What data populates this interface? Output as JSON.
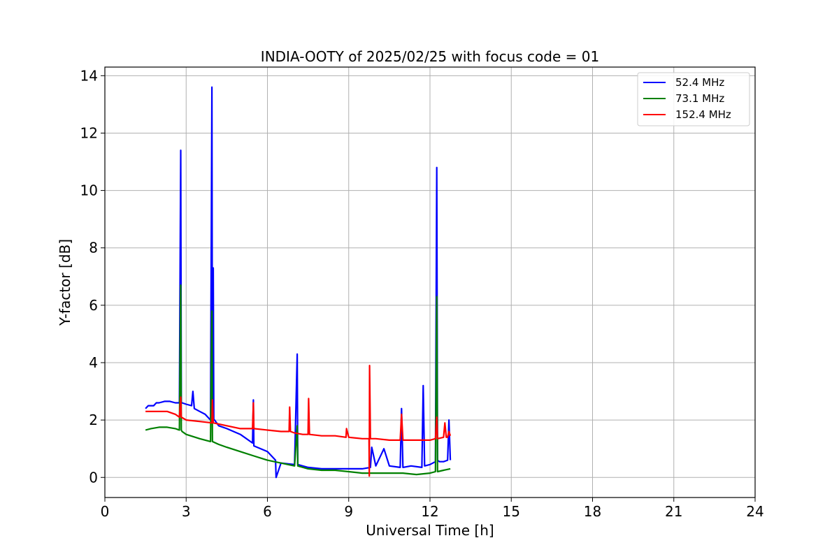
{
  "chart_data": {
    "type": "line",
    "title": "INDIA-OOTY of 2025/02/25 with focus code = 01",
    "xlabel": "Universal Time [h]",
    "ylabel": "Y-factor [dB]",
    "xlim": [
      0,
      24
    ],
    "ylim": [
      -0.7,
      14.3
    ],
    "xticks": [
      0,
      3,
      6,
      9,
      12,
      15,
      18,
      21,
      24
    ],
    "yticks": [
      0,
      2,
      4,
      6,
      8,
      10,
      12,
      14
    ],
    "grid": true,
    "legend_position": "top-right",
    "series": [
      {
        "name": "  52.4 MHz",
        "color": "#0000ff",
        "x": [
          1.5,
          1.6,
          1.7,
          1.8,
          1.9,
          2.0,
          2.2,
          2.4,
          2.6,
          2.75,
          2.8,
          2.82,
          2.85,
          3.0,
          3.2,
          3.25,
          3.3,
          3.5,
          3.7,
          3.9,
          3.95,
          3.97,
          4.0,
          4.02,
          4.05,
          4.2,
          4.5,
          5.0,
          5.45,
          5.48,
          5.5,
          6.0,
          6.3,
          6.32,
          6.5,
          7.0,
          7.1,
          7.12,
          7.3,
          7.5,
          8.0,
          8.5,
          9.0,
          9.5,
          9.8,
          9.85,
          10.0,
          10.3,
          10.5,
          10.9,
          10.95,
          11.0,
          11.3,
          11.7,
          11.75,
          11.8,
          12.0,
          12.2,
          12.25,
          12.28,
          12.35,
          12.5,
          12.65,
          12.7,
          12.75
        ],
        "y": [
          2.4,
          2.5,
          2.5,
          2.5,
          2.6,
          2.6,
          2.65,
          2.65,
          2.6,
          2.6,
          11.4,
          2.6,
          2.6,
          2.55,
          2.5,
          3.0,
          2.4,
          2.3,
          2.2,
          2.0,
          13.6,
          2.0,
          7.3,
          2.0,
          2.0,
          1.8,
          1.7,
          1.5,
          1.2,
          2.7,
          1.1,
          0.9,
          0.6,
          0.0,
          0.5,
          0.45,
          4.3,
          0.45,
          0.4,
          0.35,
          0.3,
          0.3,
          0.3,
          0.3,
          0.35,
          1.05,
          0.4,
          1.0,
          0.4,
          0.35,
          2.4,
          0.35,
          0.4,
          0.35,
          3.2,
          0.4,
          0.45,
          0.55,
          10.8,
          0.6,
          0.55,
          0.55,
          0.6,
          2.0,
          0.6
        ]
      },
      {
        "name": "  73.1 MHz",
        "color": "#008000",
        "x": [
          1.5,
          1.7,
          2.0,
          2.3,
          2.6,
          2.75,
          2.8,
          2.82,
          2.85,
          3.0,
          3.5,
          3.9,
          3.95,
          3.97,
          4.2,
          4.5,
          5.0,
          5.5,
          6.0,
          6.5,
          7.0,
          7.1,
          7.12,
          7.5,
          8.0,
          8.5,
          9.0,
          9.5,
          10.0,
          10.5,
          11.0,
          11.5,
          12.0,
          12.2,
          12.25,
          12.28,
          12.5,
          12.75
        ],
        "y": [
          1.65,
          1.7,
          1.75,
          1.75,
          1.7,
          1.65,
          6.7,
          1.65,
          1.6,
          1.5,
          1.35,
          1.25,
          5.8,
          1.25,
          1.15,
          1.05,
          0.9,
          0.75,
          0.6,
          0.5,
          0.4,
          1.8,
          0.4,
          0.3,
          0.25,
          0.25,
          0.2,
          0.15,
          0.15,
          0.15,
          0.15,
          0.1,
          0.15,
          0.2,
          6.3,
          0.2,
          0.25,
          0.3
        ]
      },
      {
        "name": "  152.4 MHz",
        "color": "#ff0000",
        "x": [
          1.5,
          1.7,
          2.0,
          2.3,
          2.6,
          2.75,
          2.8,
          2.82,
          3.0,
          3.5,
          3.95,
          3.97,
          4.0,
          4.5,
          5.0,
          5.45,
          5.48,
          5.5,
          6.0,
          6.5,
          6.8,
          6.82,
          6.85,
          7.0,
          7.3,
          7.5,
          7.52,
          7.55,
          8.0,
          8.5,
          8.9,
          8.92,
          9.0,
          9.5,
          9.75,
          9.76,
          9.77,
          9.8,
          10.0,
          10.5,
          10.9,
          10.95,
          11.0,
          11.5,
          12.0,
          12.2,
          12.25,
          12.28,
          12.5,
          12.55,
          12.6,
          12.65,
          12.7,
          12.75
        ],
        "y": [
          2.3,
          2.3,
          2.3,
          2.3,
          2.2,
          2.1,
          2.8,
          2.1,
          2.0,
          1.95,
          1.9,
          2.7,
          1.9,
          1.8,
          1.7,
          1.7,
          2.6,
          1.7,
          1.65,
          1.6,
          1.6,
          2.45,
          1.6,
          1.55,
          1.5,
          1.5,
          2.75,
          1.5,
          1.45,
          1.45,
          1.4,
          1.7,
          1.4,
          1.35,
          1.35,
          0.05,
          3.9,
          1.35,
          1.35,
          1.3,
          1.3,
          2.2,
          1.3,
          1.3,
          1.3,
          1.35,
          2.1,
          1.35,
          1.4,
          1.9,
          1.4,
          1.4,
          1.6,
          1.45
        ]
      }
    ]
  }
}
